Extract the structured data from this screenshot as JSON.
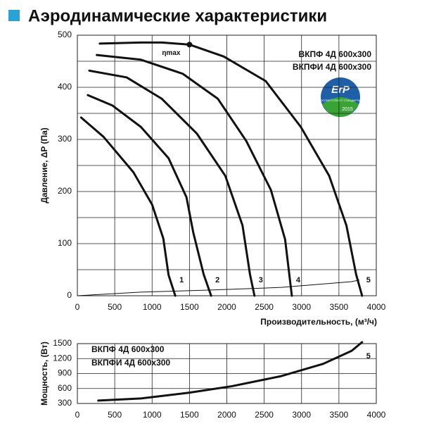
{
  "title": "Аэродинамические характеристики",
  "badge": {
    "text": "ErP",
    "sub": "СООТВЕТСТВУЕТ СТАНДАРТАМ",
    "year": "2015"
  },
  "chart_data": [
    {
      "type": "line",
      "xlabel": "Производительность, (м³/ч)",
      "ylabel": "Давление, ΔP (Па)",
      "xlim": [
        0,
        4000
      ],
      "xticks": [
        0,
        500,
        1000,
        1500,
        2000,
        2500,
        3000,
        3500,
        4000
      ],
      "ylim": [
        0,
        500
      ],
      "yticks": [
        0,
        100,
        200,
        300,
        400,
        500
      ],
      "ygrid": [
        0,
        50,
        100,
        150,
        200,
        250,
        300,
        350,
        400,
        450,
        500
      ],
      "grid": true,
      "annotations": [
        "ВКПФ 4Д 600x300",
        "ВКПФИ 4Д 600x300"
      ],
      "marker": {
        "label": "ηmax",
        "x": 1500,
        "y": 482
      },
      "series": [
        {
          "name": "1",
          "color": "#111111",
          "x": [
            50,
            350,
            750,
            1000,
            1150,
            1220,
            1310
          ],
          "values": [
            342,
            305,
            237,
            175,
            110,
            40,
            0
          ]
        },
        {
          "name": "2",
          "color": "#111111",
          "x": [
            140,
            470,
            850,
            1220,
            1460,
            1550,
            1690,
            1790
          ],
          "values": [
            385,
            365,
            324,
            264,
            189,
            122,
            41,
            0
          ]
        },
        {
          "name": "3",
          "color": "#111111",
          "x": [
            160,
            660,
            1130,
            1600,
            1980,
            2210,
            2310,
            2370
          ],
          "values": [
            432,
            419,
            378,
            311,
            230,
            135,
            41,
            0
          ]
        },
        {
          "name": "4",
          "color": "#111111",
          "x": [
            260,
            850,
            1410,
            1880,
            2260,
            2590,
            2780,
            2870
          ],
          "values": [
            462,
            453,
            426,
            378,
            297,
            203,
            108,
            0
          ]
        },
        {
          "name": "5",
          "color": "#111111",
          "x": [
            300,
            850,
            1130,
            1500,
            1960,
            2520,
            2990,
            3370,
            3600,
            3730,
            3810
          ],
          "values": [
            484,
            486,
            486,
            482,
            459,
            412,
            324,
            230,
            135,
            41,
            0
          ]
        },
        {
          "color": "#111111",
          "thin": true,
          "x": [
            0,
            850,
            1790,
            2730,
            3670,
            3770
          ],
          "values": [
            0,
            7,
            11,
            16,
            27,
            30
          ]
        }
      ]
    },
    {
      "type": "line",
      "ylabel": "Мощность, (Вт)",
      "xlim": [
        0,
        4000
      ],
      "xticks": [
        0,
        500,
        1000,
        1500,
        2000,
        2500,
        3000,
        3500,
        4000
      ],
      "ylim": [
        300,
        1500
      ],
      "yticks": [
        300,
        600,
        900,
        1200,
        1500
      ],
      "grid": true,
      "annotations": [
        "ВКПФ 4Д 600x300",
        "ВКПФИ 4Д 600x300"
      ],
      "series": [
        {
          "name": "5",
          "color": "#111111",
          "x": [
            280,
            850,
            1500,
            2070,
            2730,
            3290,
            3670,
            3810
          ],
          "values": [
            358,
            401,
            517,
            647,
            849,
            1095,
            1355,
            1529
          ]
        }
      ]
    }
  ]
}
